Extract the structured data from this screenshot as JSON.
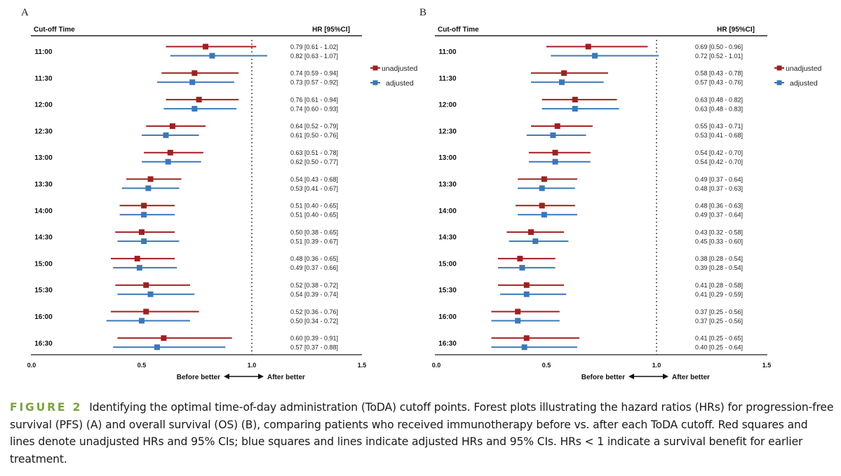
{
  "colors": {
    "unadjusted": "#a11f1f",
    "adjusted": "#3a78b8",
    "figure_label": "#7ba23f"
  },
  "legend": {
    "unadjusted": "unadjusted",
    "adjusted": "adjusted"
  },
  "caption": {
    "label": "FIGURE 2",
    "text": "Identifying the optimal time-of-day administration (ToDA) cutoff points. Forest plots illustrating the hazard ratios (HRs) for progression-free survival (PFS) (A) and overall survival (OS) (B), comparing patients who received immunotherapy before vs. after each ToDA cutoff. Red squares and lines denote unadjusted HRs and 95% CIs; blue squares and lines indicate adjusted HRs and 95% CIs. HRs < 1 indicate a survival benefit for earlier treatment."
  },
  "chart_data": [
    {
      "type": "forest",
      "panel": "A",
      "title": "",
      "col_header_left": "Cut-off Time",
      "col_header_right": "HR [95%CI]",
      "xlim": [
        0.0,
        1.5
      ],
      "xticks": [
        "0.0",
        "0.5",
        "1.0",
        "1.5"
      ],
      "reference_line": 1.0,
      "direction_left": "Before better",
      "direction_right": "After better",
      "legend_position": "right",
      "categories": [
        "11:00",
        "11:30",
        "12:00",
        "12:30",
        "13:00",
        "13:30",
        "14:00",
        "14:30",
        "15:00",
        "15:30",
        "16:00",
        "16:30"
      ],
      "series": [
        {
          "name": "unadjusted",
          "hr": [
            0.79,
            0.74,
            0.76,
            0.64,
            0.63,
            0.54,
            0.51,
            0.5,
            0.48,
            0.52,
            0.52,
            0.6
          ],
          "lower": [
            0.61,
            0.59,
            0.61,
            0.52,
            0.51,
            0.43,
            0.4,
            0.38,
            0.36,
            0.38,
            0.36,
            0.39
          ],
          "upper": [
            1.02,
            0.94,
            0.94,
            0.79,
            0.78,
            0.68,
            0.65,
            0.65,
            0.65,
            0.72,
            0.76,
            0.91
          ],
          "labels": [
            "0.79 [0.61 - 1.02]",
            "0.74 [0.59 - 0.94]",
            "0.76 [0.61 - 0.94]",
            "0.64 [0.52 - 0.79]",
            "0.63 [0.51 - 0.78]",
            "0.54 [0.43 - 0.68]",
            "0.51 [0.40 - 0.65]",
            "0.50 [0.38 - 0.65]",
            "0.48 [0.36 - 0.65]",
            "0.52 [0.38 - 0.72]",
            "0.52 [0.36 - 0.76]",
            "0.60 [0.39 - 0.91]"
          ]
        },
        {
          "name": "adjusted",
          "hr": [
            0.82,
            0.73,
            0.74,
            0.61,
            0.62,
            0.53,
            0.51,
            0.51,
            0.49,
            0.54,
            0.5,
            0.57
          ],
          "lower": [
            0.63,
            0.57,
            0.6,
            0.5,
            0.5,
            0.41,
            0.4,
            0.39,
            0.37,
            0.39,
            0.34,
            0.37
          ],
          "upper": [
            1.07,
            0.92,
            0.93,
            0.76,
            0.77,
            0.67,
            0.65,
            0.67,
            0.66,
            0.74,
            0.72,
            0.88
          ],
          "labels": [
            "0.82 [0.63 - 1.07]",
            "0.73 [0.57 - 0.92]",
            "0.74 [0.60 - 0.93]",
            "0.61 [0.50 - 0.76]",
            "0.62 [0.50 - 0.77]",
            "0.53 [0.41 - 0.67]",
            "0.51 [0.40 - 0.65]",
            "0.51 [0.39 - 0.67]",
            "0.49 [0.37 - 0.66]",
            "0.54 [0.39 - 0.74]",
            "0.50 [0.34 - 0.72]",
            "0.57 [0.37 - 0.88]"
          ]
        }
      ]
    },
    {
      "type": "forest",
      "panel": "B",
      "title": "",
      "col_header_left": "Cut-off Time",
      "col_header_right": "HR [95%CI]",
      "xlim": [
        0.0,
        1.5
      ],
      "xticks": [
        "0.0",
        "0.5",
        "1.0",
        "1.5"
      ],
      "reference_line": 1.0,
      "direction_left": "Before better",
      "direction_right": "After better",
      "legend_position": "right",
      "categories": [
        "11:00",
        "11:30",
        "12:00",
        "12:30",
        "13:00",
        "13:30",
        "14:00",
        "14:30",
        "15:00",
        "15:30",
        "16:00",
        "16:30"
      ],
      "series": [
        {
          "name": "unadjusted",
          "hr": [
            0.69,
            0.58,
            0.63,
            0.55,
            0.54,
            0.49,
            0.48,
            0.43,
            0.38,
            0.41,
            0.37,
            0.41
          ],
          "lower": [
            0.5,
            0.43,
            0.48,
            0.43,
            0.42,
            0.37,
            0.36,
            0.32,
            0.28,
            0.28,
            0.25,
            0.25
          ],
          "upper": [
            0.96,
            0.78,
            0.82,
            0.71,
            0.7,
            0.64,
            0.63,
            0.58,
            0.54,
            0.58,
            0.56,
            0.65
          ],
          "labels": [
            "0.69 [0.50 - 0.96]",
            "0.58 [0.43 - 0.78]",
            "0.63 [0.48 - 0.82]",
            "0.55 [0.43 - 0.71]",
            "0.54 [0.42 - 0.70]",
            "0.49 [0.37 - 0.64]",
            "0.48 [0.36 - 0.63]",
            "0.43 [0.32 - 0.58]",
            "0.38 [0.28 - 0.54]",
            "0.41 [0.28 - 0.58]",
            "0.37 [0.25 - 0.56]",
            "0.41 [0.25 - 0.65]"
          ]
        },
        {
          "name": "adjusted",
          "hr": [
            0.72,
            0.57,
            0.63,
            0.53,
            0.54,
            0.48,
            0.49,
            0.45,
            0.39,
            0.41,
            0.37,
            0.4
          ],
          "lower": [
            0.52,
            0.43,
            0.48,
            0.41,
            0.42,
            0.37,
            0.37,
            0.33,
            0.28,
            0.29,
            0.25,
            0.25
          ],
          "upper": [
            1.01,
            0.76,
            0.83,
            0.68,
            0.7,
            0.63,
            0.64,
            0.6,
            0.54,
            0.59,
            0.56,
            0.64
          ],
          "labels": [
            "0.72 [0.52 - 1.01]",
            "0.57 [0.43 - 0.76]",
            "0.63 [0.48 - 0.83]",
            "0.53 [0.41 - 0.68]",
            "0.54 [0.42 - 0.70]",
            "0.48 [0.37 - 0.63]",
            "0.49 [0.37 - 0.64]",
            "0.45 [0.33 - 0.60]",
            "0.39 [0.28 - 0.54]",
            "0.41 [0.29 - 0.59]",
            "0.37 [0.25 - 0.56]",
            "0.40 [0.25 - 0.64]"
          ]
        }
      ]
    }
  ]
}
